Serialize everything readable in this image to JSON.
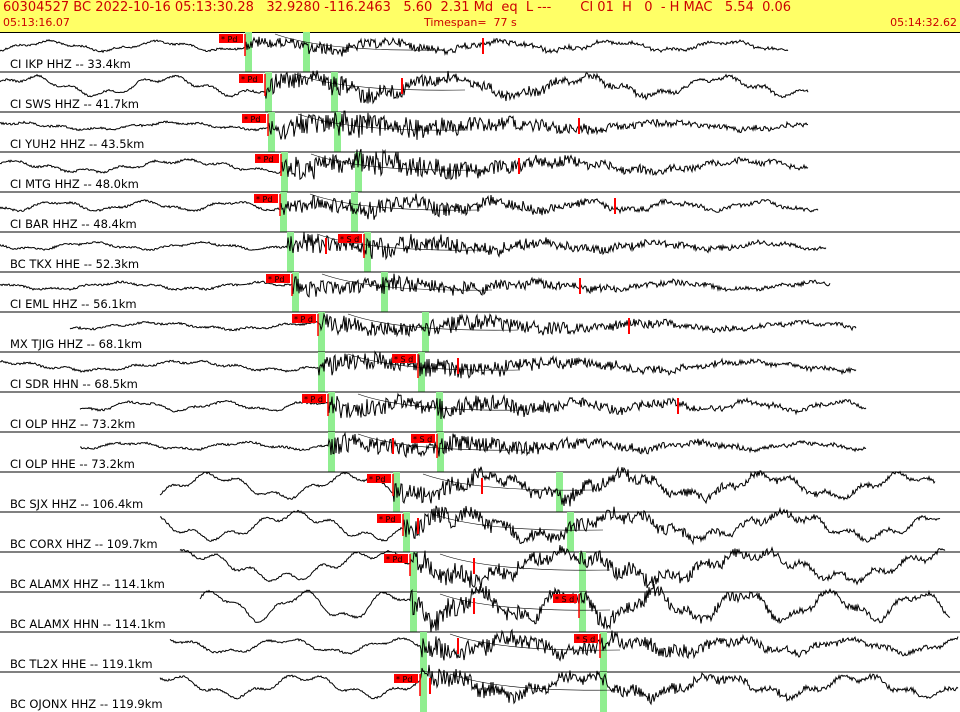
{
  "header": {
    "summary": "60304527 BC 2022-10-16 05:13:30.28   32.9280 -116.2463   5.60  2.31 Md  eq  L ---       CI 01  H   0  - H MAC   5.54  0.06",
    "start_time": "05:13:16.07",
    "timespan": "Timespan=  77 s",
    "end_time": "05:14:32.62"
  },
  "colors": {
    "header_bg": "#ffff66",
    "header_text": "#cc0000",
    "pick_red": "#ff0000",
    "window_green": "#90ee90",
    "trace": "#000000"
  },
  "stations": [
    {
      "label": "CI IKP HHZ -- 33.4km",
      "p": 245,
      "s": 303,
      "plab": "* Pd",
      "slab": "",
      "ticks": [
        483
      ],
      "start": 0,
      "end": 788,
      "amp": 4,
      "burst": 6,
      "ph": 1
    },
    {
      "label": "CI SWS HHZ -- 41.7km",
      "p": 265,
      "s": 331,
      "plab": "* Pd",
      "slab": "",
      "ticks": [
        402
      ],
      "start": 0,
      "end": 808,
      "amp": 8,
      "burst": 10,
      "ph": 2
    },
    {
      "label": "CI YUH2 HHZ -- 43.5km",
      "p": 268,
      "s": 334,
      "plab": "* Pd",
      "slab": "",
      "ticks": [
        579
      ],
      "start": 0,
      "end": 808,
      "amp": 3,
      "burst": 14,
      "ph": 3
    },
    {
      "label": "CI MTG HHZ -- 48.0km",
      "p": 281,
      "s": 355,
      "plab": "* Pd",
      "slab": "",
      "ticks": [
        519
      ],
      "start": 0,
      "end": 808,
      "amp": 5,
      "burst": 14,
      "ph": 4
    },
    {
      "label": "CI BAR HHZ -- 48.4km",
      "p": 280,
      "s": 351,
      "plab": "* Pd",
      "slab": "",
      "ticks": [
        615
      ],
      "start": 0,
      "end": 818,
      "amp": 4,
      "burst": 10,
      "ph": 5
    },
    {
      "label": "BC TKX HHE -- 52.3km",
      "p": 287,
      "s": 364,
      "plab": "",
      "slab": "* S d",
      "ticks": [
        326
      ],
      "start": 0,
      "end": 826,
      "amp": 3,
      "burst": 12,
      "ph": 6
    },
    {
      "label": "CI EML HHZ -- 56.1km",
      "p": 292,
      "s": 381,
      "plab": "* Pd",
      "slab": "",
      "ticks": [
        580
      ],
      "start": 0,
      "end": 830,
      "amp": 3,
      "burst": 10,
      "ph": 7
    },
    {
      "label": "MX TJIG HHZ -- 68.1km",
      "p": 318,
      "s": 422,
      "plab": "* P d",
      "slab": "",
      "ticks": [
        629
      ],
      "start": 70,
      "end": 856,
      "amp": 3,
      "burst": 12,
      "ph": 8
    },
    {
      "label": "CI SDR HHN -- 68.5km",
      "p": 318,
      "s": 418,
      "plab": "",
      "slab": "* S d",
      "ticks": [
        458
      ],
      "start": 0,
      "end": 856,
      "amp": 4,
      "burst": 12,
      "ph": 9
    },
    {
      "label": "CI OLP HHZ -- 73.2km",
      "p": 328,
      "s": 436,
      "plab": "* P d",
      "slab": "",
      "ticks": [
        678
      ],
      "start": 80,
      "end": 866,
      "amp": 4,
      "burst": 12,
      "ph": 10
    },
    {
      "label": "CI OLP HHE -- 73.2km",
      "p": 328,
      "s": 437,
      "plab": "",
      "slab": "* S d",
      "ticks": [
        393
      ],
      "start": 80,
      "end": 866,
      "amp": 3,
      "burst": 12,
      "ph": 11
    },
    {
      "label": "BC SJX HHZ -- 106.4km",
      "p": 393,
      "s": 556,
      "plab": "* Pd",
      "slab": "",
      "ticks": [
        482
      ],
      "start": 160,
      "end": 935,
      "amp": 10,
      "burst": 12,
      "ph": 12
    },
    {
      "label": "BC CORX HHZ -- 109.7km",
      "p": 403,
      "s": 567,
      "plab": "* Pd",
      "slab": "",
      "ticks": [
        418
      ],
      "start": 160,
      "end": 940,
      "amp": 11,
      "burst": 12,
      "ph": 13
    },
    {
      "label": "BC ALAMX HHZ -- 114.1km",
      "p": 410,
      "s": 579,
      "plab": "* Pd",
      "slab": "",
      "ticks": [
        474
      ],
      "start": 180,
      "end": 945,
      "amp": 12,
      "burst": 14,
      "ph": 14
    },
    {
      "label": "BC ALAMX HHN -- 114.1km",
      "p": 410,
      "s": 579,
      "plab": "",
      "slab": "* S d",
      "ticks": [
        474
      ],
      "start": 200,
      "end": 950,
      "amp": 12,
      "burst": 14,
      "ph": 15
    },
    {
      "label": "BC TL2X HHE -- 119.1km",
      "p": 420,
      "s": 600,
      "plab": "",
      "slab": "* S d",
      "ticks": [
        458
      ],
      "start": 170,
      "end": 958,
      "amp": 6,
      "burst": 14,
      "ph": 16
    },
    {
      "label": "BC OJONX HHZ -- 119.9km",
      "p": 420,
      "s": 600,
      "plab": "* Pd",
      "slab": "",
      "ticks": [
        430
      ],
      "start": 160,
      "end": 958,
      "amp": 9,
      "burst": 12,
      "ph": 17
    }
  ]
}
